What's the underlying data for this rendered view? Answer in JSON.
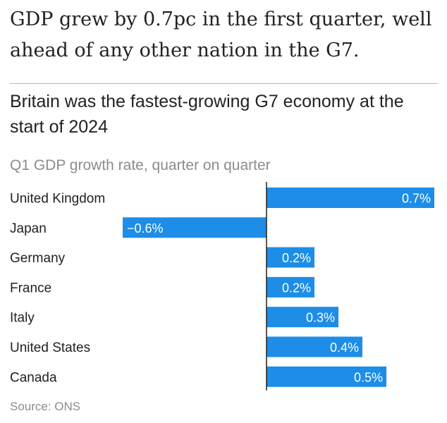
{
  "headline": "GDP grew by 0.7pc in the first quarter, well ahead of any other nation in the G7.",
  "source": "Source: ONS",
  "colors": {
    "bar": "#1d8de8",
    "axis": "#222222",
    "rule": "#b5b5b5",
    "muted": "#8c8c8c"
  },
  "chart_data": {
    "type": "bar",
    "orientation": "horizontal",
    "title": "Britain was the fastest-growing G7 economy at the start of 2024",
    "subtitle": "Q1 GDP growth rate, quarter on quarter",
    "categories": [
      "United Kingdom",
      "Japan",
      "Germany",
      "France",
      "Italy",
      "United States",
      "Canada"
    ],
    "values": [
      0.7,
      -0.6,
      0.2,
      0.2,
      0.3,
      0.4,
      0.5
    ],
    "value_labels": [
      "0.7%",
      "−0.6%",
      "0.2%",
      "0.2%",
      "0.3%",
      "0.4%",
      "0.5%"
    ],
    "xlim": [
      -0.6,
      0.7
    ],
    "grid": false,
    "legend": "none"
  }
}
